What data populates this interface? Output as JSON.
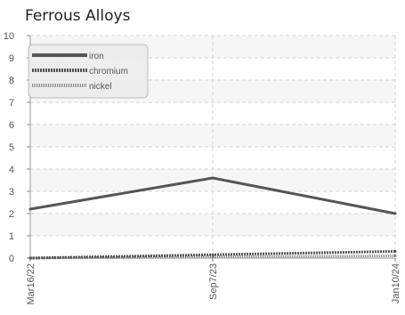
{
  "chart_data": {
    "type": "line",
    "title": "Ferrous Alloys",
    "xlabel": "",
    "ylabel": "",
    "x": [
      "Mar16/22",
      "Sep7/23",
      "Jan10/24"
    ],
    "ylim": [
      0,
      10
    ],
    "yticks": [
      0,
      1,
      2,
      3,
      4,
      5,
      6,
      7,
      8,
      9,
      10
    ],
    "grid": true,
    "legend_position": "top-left",
    "series": [
      {
        "name": "iron",
        "values": [
          2.2,
          3.6,
          2.0
        ],
        "color": "#555555",
        "style": "solid"
      },
      {
        "name": "chromium",
        "values": [
          0.0,
          0.15,
          0.3
        ],
        "color": "#555555",
        "style": "dashed"
      },
      {
        "name": "nickel",
        "values": [
          0.0,
          0.05,
          0.1
        ],
        "color": "#888888",
        "style": "dotted"
      }
    ]
  }
}
